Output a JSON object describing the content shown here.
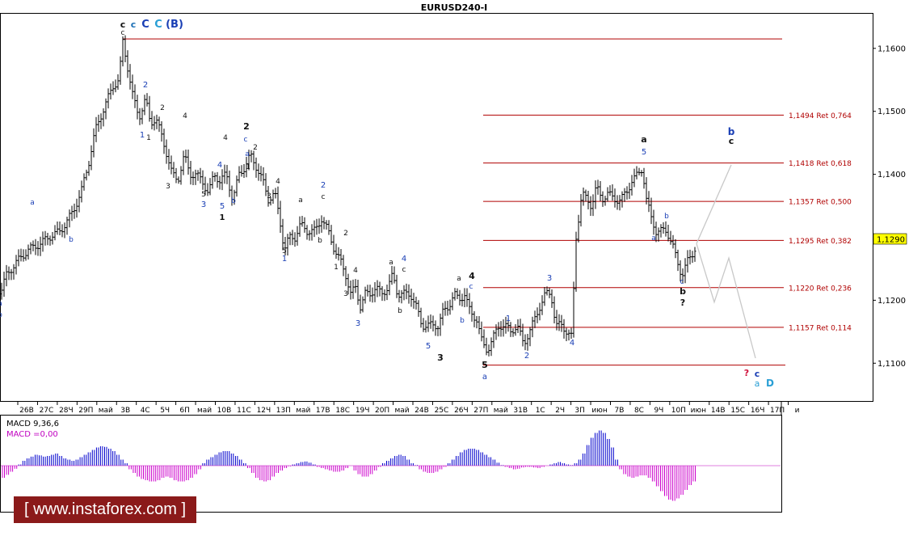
{
  "title": "EURUSD240-I",
  "current_price": "1,1290",
  "y_axis": {
    "ticks": [
      "1,1100",
      "1,1200",
      "1,1300",
      "1,1400",
      "1,1500",
      "1,1600"
    ]
  },
  "x_axis": {
    "ticks": [
      "26В",
      "27С",
      "28Ч",
      "29П",
      "май",
      "3В",
      "4С",
      "5Ч",
      "6П",
      "май",
      "10В",
      "11С",
      "12Ч",
      "13П",
      "май",
      "17В",
      "18С",
      "19Ч",
      "20П",
      "май",
      "24В",
      "25С",
      "26Ч",
      "27П",
      "май",
      "31В",
      "1С",
      "2Ч",
      "3П",
      "июн",
      "7В",
      "8С",
      "9Ч",
      "10П",
      "июн",
      "14В",
      "15С",
      "16Ч",
      "17П",
      "и"
    ]
  },
  "fib_levels": [
    "1,1494 Ret 0,764",
    "1,1418 Ret 0,618",
    "1,1357 Ret 0,500",
    "1,1295 Ret 0,382",
    "1,1220 Ret 0,236",
    "1,1157 Ret 0,114"
  ],
  "macd": {
    "label1": "MACD 9,36,6",
    "label2": "MACD =0,00"
  },
  "watermark": "[ www.instaforex.com ]",
  "wave_labels": [
    {
      "t": "c",
      "c": "#111"
    },
    {
      "t": "c",
      "c": "#1a6fb5"
    },
    {
      "t": "C",
      "c": "#1a3fb5"
    },
    {
      "t": "C",
      "c": "#2a9fd5"
    },
    {
      "t": "(B)",
      "c": "#1a3fb5"
    },
    {
      "t": "c",
      "c": "#111"
    },
    {
      "t": "2",
      "c": "#1a3fb5"
    },
    {
      "t": "2",
      "c": "#111"
    },
    {
      "t": "1",
      "c": "#1a3fb5"
    },
    {
      "t": "1",
      "c": "#111"
    },
    {
      "t": "4",
      "c": "#111"
    },
    {
      "t": "3",
      "c": "#111"
    },
    {
      "t": "a",
      "c": "#1a3fb5"
    },
    {
      "t": "b",
      "c": "#1a3fb5"
    },
    {
      "t": "2",
      "c": "#111"
    },
    {
      "t": "c",
      "c": "#1a3fb5"
    },
    {
      "t": "a",
      "c": "#1a3fb5"
    },
    {
      "t": "2",
      "c": "#111"
    },
    {
      "t": "1",
      "c": "#111"
    },
    {
      "t": "4",
      "c": "#1a3fb5"
    },
    {
      "t": "4",
      "c": "#111"
    },
    {
      "t": "b",
      "c": "#1a3fb5"
    },
    {
      "t": "5",
      "c": "#111"
    },
    {
      "t": "3",
      "c": "#1a3fb5"
    },
    {
      "t": "5",
      "c": "#1a3fb5"
    },
    {
      "t": "1",
      "c": "#111"
    },
    {
      "t": "3",
      "c": "#111"
    },
    {
      "t": "4",
      "c": "#111"
    },
    {
      "t": "2",
      "c": "#1a3fb5"
    },
    {
      "t": "a",
      "c": "#111"
    },
    {
      "t": "c",
      "c": "#111"
    },
    {
      "t": "b",
      "c": "#111"
    },
    {
      "t": "2",
      "c": "#111"
    },
    {
      "t": "5",
      "c": "#111"
    },
    {
      "t": "1",
      "c": "#1a3fb5"
    },
    {
      "t": "1",
      "c": "#111"
    },
    {
      "t": "4",
      "c": "#111"
    },
    {
      "t": "3",
      "c": "#111"
    },
    {
      "t": "3",
      "c": "#1a3fb5"
    },
    {
      "t": "a",
      "c": "#111"
    },
    {
      "t": "4",
      "c": "#1a3fb5"
    },
    {
      "t": "c",
      "c": "#111"
    },
    {
      "t": "b",
      "c": "#111"
    },
    {
      "t": "5",
      "c": "#1a3fb5"
    },
    {
      "t": "3",
      "c": "#111"
    },
    {
      "t": "a",
      "c": "#111"
    },
    {
      "t": "c",
      "c": "#1a3fb5"
    },
    {
      "t": "4",
      "c": "#111"
    },
    {
      "t": "b",
      "c": "#1a3fb5"
    },
    {
      "t": "5",
      "c": "#111"
    },
    {
      "t": "a",
      "c": "#1a3fb5"
    },
    {
      "t": "1",
      "c": "#1a3fb5"
    },
    {
      "t": "2",
      "c": "#1a3fb5"
    },
    {
      "t": "3",
      "c": "#1a3fb5"
    },
    {
      "t": "4",
      "c": "#1a3fb5"
    },
    {
      "t": "a",
      "c": "#111"
    },
    {
      "t": "5",
      "c": "#1a3fb5"
    },
    {
      "t": "b",
      "c": "#1a3fb5"
    },
    {
      "t": "a",
      "c": "#1a3fb5"
    },
    {
      "t": "c",
      "c": "#1a3fb5"
    },
    {
      "t": "b",
      "c": "#111"
    },
    {
      "t": "?",
      "c": "#111"
    },
    {
      "t": "b",
      "c": "#1a3fb5"
    },
    {
      "t": "c",
      "c": "#111"
    },
    {
      "t": "?",
      "c": "#d0103a"
    },
    {
      "t": "c",
      "c": "#1a3fb5"
    },
    {
      "t": "a",
      "c": "#2a9fd5"
    },
    {
      "t": "D",
      "c": "#2a9fd5"
    },
    {
      "t": "a",
      "c": "#1a3fb5"
    },
    {
      "t": "b",
      "c": "#1a3fb5"
    }
  ],
  "chart_data": {
    "type": "ohlc",
    "symbol": "EURUSD240-I",
    "ylim": [
      1.104,
      1.1655
    ],
    "fib_retracement": [
      {
        "price": 1.1494,
        "ratio": 0.764
      },
      {
        "price": 1.1418,
        "ratio": 0.618
      },
      {
        "price": 1.1357,
        "ratio": 0.5
      },
      {
        "price": 1.1295,
        "ratio": 0.382
      },
      {
        "price": 1.122,
        "ratio": 0.236
      },
      {
        "price": 1.1157,
        "ratio": 0.114
      }
    ],
    "horizontal_levels": [
      1.1615,
      1.1097
    ],
    "price_path": [
      [
        0,
        1.121
      ],
      [
        8,
        1.124
      ],
      [
        20,
        1.126
      ],
      [
        35,
        1.128
      ],
      [
        50,
        1.129
      ],
      [
        60,
        1.13
      ],
      [
        75,
        1.131
      ],
      [
        90,
        1.134
      ],
      [
        100,
        1.137
      ],
      [
        110,
        1.142
      ],
      [
        118,
        1.147
      ],
      [
        130,
        1.151
      ],
      [
        140,
        1.154
      ],
      [
        147,
        1.155
      ],
      [
        152,
        1.161
      ],
      [
        158,
        1.157
      ],
      [
        165,
        1.152
      ],
      [
        172,
        1.149
      ],
      [
        180,
        1.152
      ],
      [
        186,
        1.148
      ],
      [
        193,
        1.149
      ],
      [
        200,
        1.146
      ],
      [
        207,
        1.143
      ],
      [
        213,
        1.14
      ],
      [
        220,
        1.139
      ],
      [
        228,
        1.143
      ],
      [
        235,
        1.14
      ],
      [
        242,
        1.14
      ],
      [
        250,
        1.139
      ],
      [
        258,
        1.137
      ],
      [
        265,
        1.14
      ],
      [
        272,
        1.139
      ],
      [
        280,
        1.14
      ],
      [
        288,
        1.136
      ],
      [
        296,
        1.14
      ],
      [
        302,
        1.141
      ],
      [
        310,
        1.143
      ],
      [
        318,
        1.141
      ],
      [
        325,
        1.139
      ],
      [
        332,
        1.136
      ],
      [
        340,
        1.137
      ],
      [
        346,
        1.133
      ],
      [
        352,
        1.128
      ],
      [
        358,
        1.13
      ],
      [
        365,
        1.13
      ],
      [
        372,
        1.132
      ],
      [
        380,
        1.131
      ],
      [
        390,
        1.131
      ],
      [
        398,
        1.133
      ],
      [
        406,
        1.131
      ],
      [
        414,
        1.128
      ],
      [
        422,
        1.126
      ],
      [
        428,
        1.124
      ],
      [
        434,
        1.121
      ],
      [
        440,
        1.122
      ],
      [
        446,
        1.119
      ],
      [
        452,
        1.121
      ],
      [
        458,
        1.121
      ],
      [
        465,
        1.122
      ],
      [
        472,
        1.121
      ],
      [
        480,
        1.122
      ],
      [
        486,
        1.124
      ],
      [
        492,
        1.121
      ],
      [
        500,
        1.121
      ],
      [
        508,
        1.121
      ],
      [
        515,
        1.119
      ],
      [
        522,
        1.116
      ],
      [
        528,
        1.116
      ],
      [
        535,
        1.116
      ],
      [
        542,
        1.116
      ],
      [
        548,
        1.118
      ],
      [
        555,
        1.119
      ],
      [
        562,
        1.121
      ],
      [
        568,
        1.12
      ],
      [
        575,
        1.121
      ],
      [
        582,
        1.118
      ],
      [
        590,
        1.117
      ],
      [
        597,
        1.113
      ],
      [
        603,
        1.112
      ],
      [
        610,
        1.114
      ],
      [
        618,
        1.116
      ],
      [
        625,
        1.116
      ],
      [
        632,
        1.115
      ],
      [
        640,
        1.116
      ],
      [
        648,
        1.113
      ],
      [
        655,
        1.115
      ],
      [
        662,
        1.117
      ],
      [
        668,
        1.119
      ],
      [
        675,
        1.121
      ],
      [
        682,
        1.121
      ],
      [
        688,
        1.116
      ],
      [
        695,
        1.116
      ],
      [
        702,
        1.115
      ],
      [
        708,
        1.114
      ],
      [
        712,
        1.129
      ],
      [
        716,
        1.133
      ],
      [
        720,
        1.137
      ],
      [
        726,
        1.136
      ],
      [
        732,
        1.135
      ],
      [
        738,
        1.138
      ],
      [
        745,
        1.136
      ],
      [
        752,
        1.137
      ],
      [
        760,
        1.136
      ],
      [
        768,
        1.136
      ],
      [
        775,
        1.137
      ],
      [
        782,
        1.139
      ],
      [
        790,
        1.14
      ],
      [
        795,
        1.141
      ],
      [
        800,
        1.136
      ],
      [
        806,
        1.133
      ],
      [
        812,
        1.131
      ],
      [
        818,
        1.131
      ],
      [
        825,
        1.131
      ],
      [
        832,
        1.129
      ],
      [
        838,
        1.126
      ],
      [
        844,
        1.124
      ],
      [
        850,
        1.126
      ],
      [
        856,
        1.127
      ],
      [
        862,
        1.129
      ]
    ],
    "projection_path": [
      [
        862,
        1.129
      ],
      [
        884,
        1.1197
      ],
      [
        902,
        1.1267
      ],
      [
        935,
        1.1108
      ]
    ],
    "projection_path_2": [
      [
        862,
        1.129
      ],
      [
        905,
        1.1415
      ]
    ],
    "macd": {
      "name": "MACD 9,36,6",
      "signal_value": 0.0,
      "histogram": [
        -0.002,
        -0.0015,
        -0.001,
        -0.0005,
        0.0002,
        0.0008,
        0.0012,
        0.0015,
        0.0018,
        0.0017,
        0.0015,
        0.0016,
        0.0018,
        0.002,
        0.0016,
        0.0012,
        0.001,
        0.0008,
        0.001,
        0.0014,
        0.0018,
        0.0022,
        0.0026,
        0.003,
        0.0032,
        0.0031,
        0.0028,
        0.0024,
        0.0018,
        0.001,
        0.0004,
        -0.0006,
        -0.0012,
        -0.0018,
        -0.0022,
        -0.0024,
        -0.0026,
        -0.0026,
        -0.0024,
        -0.002,
        -0.0018,
        -0.002,
        -0.0024,
        -0.0026,
        -0.0026,
        -0.0024,
        -0.002,
        -0.0014,
        -0.0006,
        0.0004,
        0.001,
        0.0014,
        0.0018,
        0.0022,
        0.0024,
        0.0024,
        0.002,
        0.0016,
        0.001,
        0.0004,
        -0.0004,
        -0.0012,
        -0.002,
        -0.0024,
        -0.0026,
        -0.0024,
        -0.0018,
        -0.0012,
        -0.0008,
        -0.0004,
        -0.0001,
        0.0002,
        0.0004,
        0.0006,
        0.0007,
        0.0005,
        0.0002,
        -0.0002,
        -0.0004,
        -0.0006,
        -0.0008,
        -0.001,
        -0.001,
        -0.0008,
        -0.0004,
        0.0,
        -0.0008,
        -0.0014,
        -0.0018,
        -0.0018,
        -0.0014,
        -0.0008,
        -0.0002,
        0.0004,
        0.0008,
        0.0012,
        0.0016,
        0.0018,
        0.0016,
        0.001,
        0.0004,
        0.0001,
        -0.0006,
        -0.001,
        -0.0012,
        -0.0012,
        -0.001,
        -0.0006,
        -0.0002,
        0.0004,
        0.001,
        0.0016,
        0.0022,
        0.0026,
        0.0028,
        0.0028,
        0.0026,
        0.0022,
        0.0018,
        0.0014,
        0.001,
        0.0005,
        0.0001,
        -0.0002,
        -0.0004,
        -0.0006,
        -0.0005,
        -0.0003,
        -0.0002,
        -0.0002,
        -0.0003,
        -0.0004,
        -0.0002,
        0.0,
        0.0002,
        0.0004,
        0.0006,
        0.0004,
        0.0002,
        0.0001,
        0.0004,
        0.001,
        0.002,
        0.0034,
        0.0046,
        0.0054,
        0.0058,
        0.0054,
        0.0044,
        0.003,
        0.001,
        -0.0006,
        -0.0014,
        -0.0018,
        -0.002,
        -0.0018,
        -0.0016,
        -0.0016,
        -0.002,
        -0.0026,
        -0.0034,
        -0.0042,
        -0.005,
        -0.0056,
        -0.0058,
        -0.0054,
        -0.0048,
        -0.004,
        -0.0032,
        -0.0026
      ]
    }
  }
}
